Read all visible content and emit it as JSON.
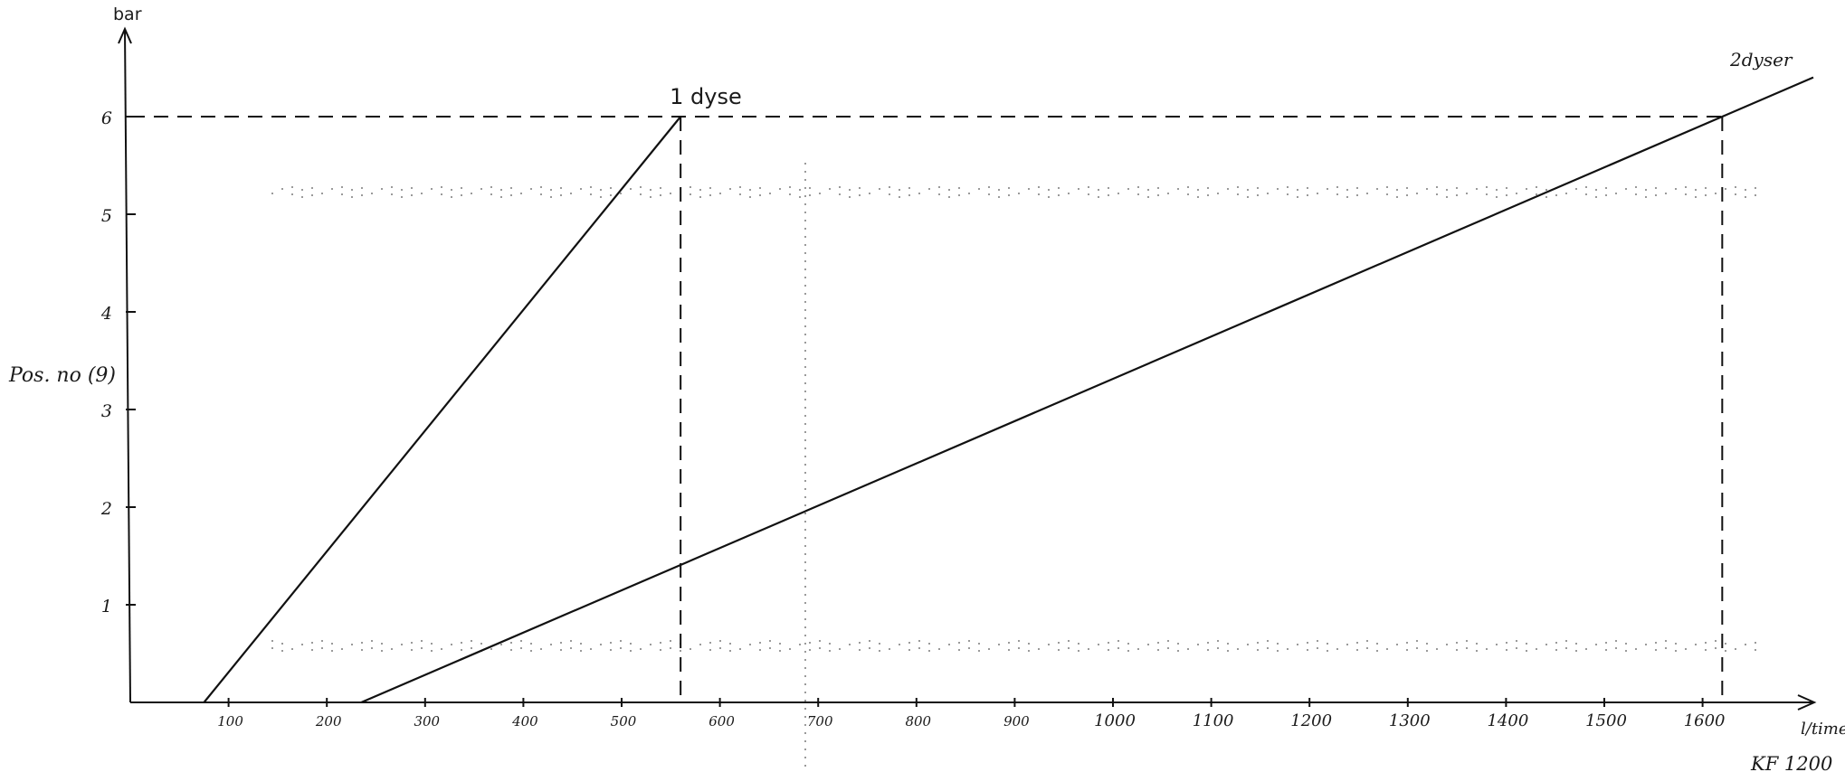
{
  "chart_data": {
    "type": "line",
    "xlabel": "l/time",
    "ylabel": "bar",
    "side_note": "Pos. no (9)",
    "corner_label": "KF 1200",
    "xlim": [
      0,
      1700
    ],
    "ylim": [
      0,
      7
    ],
    "x_ticks": [
      100,
      200,
      300,
      400,
      500,
      600,
      700,
      800,
      900,
      1000,
      1100,
      1200,
      1300,
      1400,
      1500,
      1600
    ],
    "x_tick_labels": [
      "100",
      "200",
      "300",
      "400",
      "500",
      "600",
      "700",
      "800",
      "900",
      "1000",
      "1100",
      "1200",
      "1300",
      "1400",
      "1500",
      "1600"
    ],
    "y_ticks": [
      1,
      2,
      3,
      4,
      5,
      6
    ],
    "y_tick_labels": [
      "1",
      "2",
      "3",
      "4",
      "5",
      "6"
    ],
    "grid": false,
    "legend": "none",
    "series": [
      {
        "name": "1 dyse",
        "x": [
          75,
          560
        ],
        "y": [
          0,
          6
        ]
      },
      {
        "name": "2dyser",
        "x": [
          235,
          1620
        ],
        "y": [
          0,
          6
        ]
      }
    ],
    "reference_lines": {
      "y": 6,
      "x": [
        560,
        1620
      ]
    },
    "colors": {
      "ink": "#111111",
      "paper": "#ffffff",
      "noise": "#9a9a9a"
    }
  }
}
